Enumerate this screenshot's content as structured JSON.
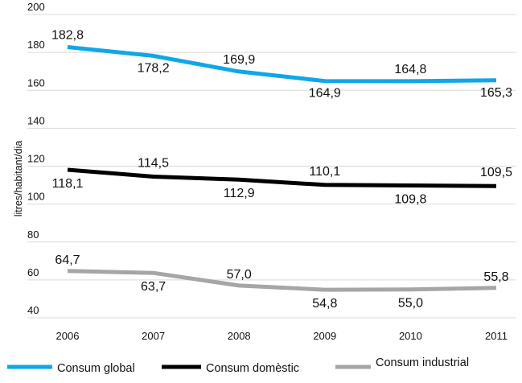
{
  "chart_data": {
    "type": "line",
    "title": "",
    "xlabel": "",
    "ylabel": "litres/habitant/dia",
    "ylim": [
      40,
      200
    ],
    "yticks": [
      40,
      60,
      80,
      100,
      120,
      140,
      160,
      180,
      200
    ],
    "grid": true,
    "legend_position": "bottom",
    "categories": [
      "2006",
      "2007",
      "2008",
      "2009",
      "2010",
      "2011"
    ],
    "series": [
      {
        "name": "Consum global",
        "color": "#0fa7e6",
        "values": [
          182.8,
          178.2,
          169.9,
          164.9,
          164.8,
          165.3
        ],
        "labels": [
          "182,8",
          "178,2",
          "169,9",
          "164,9",
          "164,8",
          "165,3"
        ]
      },
      {
        "name": "Consum domèstic",
        "color": "#000000",
        "values": [
          118.1,
          114.5,
          112.9,
          110.1,
          109.8,
          109.5
        ],
        "labels": [
          "118,1",
          "114,5",
          "112,9",
          "110,1",
          "109,8",
          "109,5"
        ]
      },
      {
        "name": "Consum industrial",
        "color": "#a6a6a6",
        "values": [
          64.7,
          63.7,
          57.0,
          54.8,
          55.0,
          55.8
        ],
        "labels": [
          "64,7",
          "63,7",
          "57,0",
          "54,8",
          "55,0",
          "55,8"
        ]
      }
    ]
  }
}
